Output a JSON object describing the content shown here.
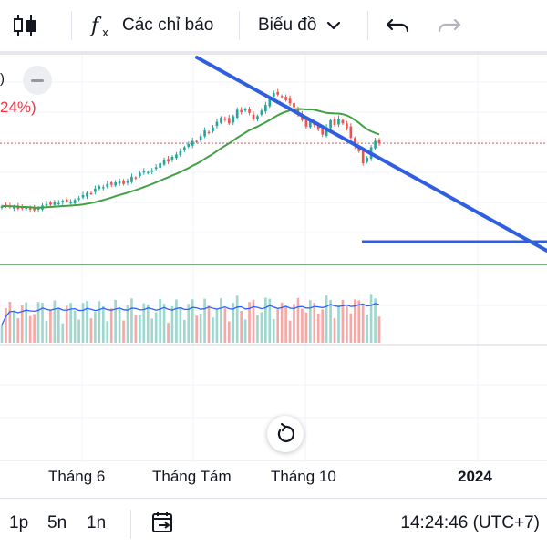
{
  "toolbar": {
    "indicators_label": "Các chỉ báo",
    "chart_type_label": "Biểu đồ"
  },
  "legend": {
    "pct_fragment": "24%)",
    "paren_fragment": ")"
  },
  "time_axis": [
    "Tháng 6",
    "Tháng Tám",
    "Tháng 10",
    "2024"
  ],
  "bottombar": {
    "intervals": [
      "1p",
      "5n",
      "1n"
    ],
    "clock": "14:24:46 (UTC+7)"
  },
  "colors": {
    "up": "#26a69a",
    "down": "#ef5350",
    "ma": "#43a047",
    "trendline": "#2f5fe0",
    "volume_ma": "#2962ff"
  },
  "chart_data": {
    "type": "candlestick",
    "x_labels": [
      "Tháng 6",
      "Tháng Tám",
      "Tháng 10",
      "2024"
    ],
    "close": [
      30,
      31,
      29,
      30,
      27,
      28,
      29,
      26,
      25,
      28,
      31,
      33,
      32,
      35,
      34,
      37,
      36,
      35,
      38,
      40,
      44,
      47,
      46,
      52,
      55,
      54,
      58,
      57,
      60,
      61,
      58,
      62,
      67,
      66,
      72,
      74,
      73,
      75,
      79,
      84,
      88,
      86,
      92,
      95,
      99,
      104,
      108,
      112,
      111,
      118,
      125,
      123,
      129,
      136,
      141,
      139,
      134,
      143,
      151,
      148,
      152,
      147,
      139,
      143,
      150,
      157,
      166,
      172,
      170,
      168,
      163,
      159,
      154,
      145,
      138,
      130,
      136,
      132,
      126,
      120,
      129,
      138,
      132,
      140,
      134,
      128,
      116,
      105,
      99,
      84,
      91,
      104,
      112,
      109
    ],
    "ma": "slow moving-average line",
    "icons": [
      "candlestick-icon",
      "fx-icon",
      "chevron-down-icon",
      "undo-icon",
      "redo-icon",
      "replay-icon",
      "calendar-goto-icon"
    ]
  }
}
